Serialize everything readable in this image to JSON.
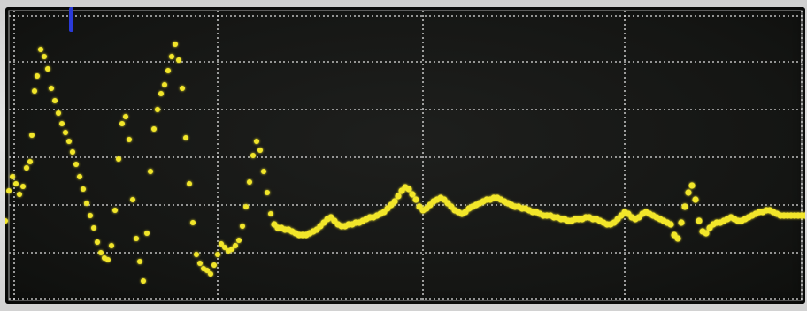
{
  "scope": {
    "background_color": "#161715",
    "grid_color": "#dcdcdc",
    "trace_color": "#f2e62a",
    "marker_color": "#2a3ad8",
    "grid": true,
    "trace": [
      [
        0,
        242
      ],
      [
        4,
        208
      ],
      [
        8,
        192
      ],
      [
        12,
        200
      ],
      [
        16,
        212
      ],
      [
        20,
        203
      ],
      [
        24,
        182
      ],
      [
        28,
        175
      ],
      [
        30,
        145
      ],
      [
        33,
        95
      ],
      [
        36,
        78
      ],
      [
        40,
        48
      ],
      [
        44,
        56
      ],
      [
        48,
        70
      ],
      [
        52,
        92
      ],
      [
        56,
        106
      ],
      [
        60,
        120
      ],
      [
        64,
        132
      ],
      [
        68,
        142
      ],
      [
        72,
        152
      ],
      [
        76,
        164
      ],
      [
        80,
        178
      ],
      [
        84,
        192
      ],
      [
        88,
        206
      ],
      [
        92,
        222
      ],
      [
        96,
        236
      ],
      [
        100,
        250
      ],
      [
        104,
        266
      ],
      [
        108,
        278
      ],
      [
        112,
        284
      ],
      [
        116,
        286
      ],
      [
        120,
        270
      ],
      [
        124,
        230
      ],
      [
        128,
        172
      ],
      [
        132,
        132
      ],
      [
        136,
        124
      ],
      [
        140,
        150
      ],
      [
        144,
        218
      ],
      [
        148,
        262
      ],
      [
        152,
        288
      ],
      [
        156,
        310
      ],
      [
        160,
        256
      ],
      [
        164,
        186
      ],
      [
        168,
        138
      ],
      [
        172,
        116
      ],
      [
        176,
        98
      ],
      [
        180,
        88
      ],
      [
        184,
        72
      ],
      [
        188,
        56
      ],
      [
        192,
        42
      ],
      [
        196,
        60
      ],
      [
        200,
        92
      ],
      [
        204,
        148
      ],
      [
        208,
        200
      ],
      [
        212,
        244
      ],
      [
        216,
        280
      ],
      [
        220,
        290
      ],
      [
        224,
        296
      ],
      [
        228,
        298
      ],
      [
        232,
        302
      ],
      [
        236,
        292
      ],
      [
        240,
        280
      ],
      [
        244,
        268
      ],
      [
        248,
        272
      ],
      [
        252,
        276
      ],
      [
        256,
        274
      ],
      [
        260,
        270
      ],
      [
        264,
        264
      ],
      [
        268,
        248
      ],
      [
        272,
        226
      ],
      [
        276,
        198
      ],
      [
        280,
        168
      ],
      [
        284,
        152
      ],
      [
        288,
        162
      ],
      [
        292,
        186
      ],
      [
        296,
        210
      ],
      [
        300,
        234
      ],
      [
        304,
        246
      ],
      [
        308,
        250
      ],
      [
        312,
        250
      ],
      [
        316,
        252
      ],
      [
        320,
        252
      ],
      [
        324,
        254
      ],
      [
        328,
        256
      ],
      [
        332,
        258
      ],
      [
        336,
        258
      ],
      [
        340,
        258
      ],
      [
        344,
        256
      ],
      [
        348,
        254
      ],
      [
        352,
        252
      ],
      [
        356,
        248
      ],
      [
        360,
        244
      ],
      [
        364,
        240
      ],
      [
        368,
        238
      ],
      [
        372,
        242
      ],
      [
        376,
        246
      ],
      [
        380,
        248
      ],
      [
        384,
        248
      ],
      [
        388,
        246
      ],
      [
        392,
        246
      ],
      [
        396,
        244
      ],
      [
        400,
        244
      ],
      [
        404,
        242
      ],
      [
        408,
        240
      ],
      [
        412,
        238
      ],
      [
        416,
        238
      ],
      [
        420,
        236
      ],
      [
        424,
        234
      ],
      [
        428,
        232
      ],
      [
        432,
        228
      ],
      [
        436,
        224
      ],
      [
        440,
        220
      ],
      [
        444,
        214
      ],
      [
        448,
        208
      ],
      [
        452,
        204
      ],
      [
        456,
        206
      ],
      [
        460,
        212
      ],
      [
        464,
        218
      ],
      [
        468,
        226
      ],
      [
        472,
        230
      ],
      [
        476,
        228
      ],
      [
        480,
        224
      ],
      [
        484,
        220
      ],
      [
        488,
        218
      ],
      [
        492,
        216
      ],
      [
        496,
        218
      ],
      [
        500,
        222
      ],
      [
        504,
        226
      ],
      [
        508,
        230
      ],
      [
        512,
        232
      ],
      [
        516,
        234
      ],
      [
        520,
        232
      ],
      [
        524,
        228
      ],
      [
        528,
        226
      ],
      [
        532,
        224
      ],
      [
        536,
        222
      ],
      [
        540,
        220
      ],
      [
        544,
        218
      ],
      [
        548,
        218
      ],
      [
        552,
        216
      ],
      [
        556,
        216
      ],
      [
        560,
        218
      ],
      [
        564,
        220
      ],
      [
        568,
        222
      ],
      [
        572,
        224
      ],
      [
        576,
        226
      ],
      [
        580,
        226
      ],
      [
        584,
        228
      ],
      [
        588,
        228
      ],
      [
        592,
        230
      ],
      [
        596,
        232
      ],
      [
        600,
        232
      ],
      [
        604,
        234
      ],
      [
        608,
        236
      ],
      [
        612,
        236
      ],
      [
        616,
        236
      ],
      [
        620,
        238
      ],
      [
        624,
        238
      ],
      [
        628,
        240
      ],
      [
        632,
        240
      ],
      [
        636,
        242
      ],
      [
        640,
        242
      ],
      [
        644,
        240
      ],
      [
        648,
        240
      ],
      [
        652,
        240
      ],
      [
        656,
        238
      ],
      [
        660,
        238
      ],
      [
        664,
        240
      ],
      [
        668,
        240
      ],
      [
        672,
        242
      ],
      [
        676,
        244
      ],
      [
        680,
        246
      ],
      [
        684,
        246
      ],
      [
        688,
        244
      ],
      [
        692,
        240
      ],
      [
        696,
        236
      ],
      [
        700,
        232
      ],
      [
        704,
        234
      ],
      [
        708,
        238
      ],
      [
        712,
        240
      ],
      [
        716,
        238
      ],
      [
        720,
        234
      ],
      [
        724,
        232
      ],
      [
        728,
        234
      ],
      [
        732,
        236
      ],
      [
        736,
        238
      ],
      [
        740,
        240
      ],
      [
        744,
        242
      ],
      [
        748,
        244
      ],
      [
        752,
        246
      ],
      [
        756,
        258
      ],
      [
        760,
        262
      ],
      [
        764,
        244
      ],
      [
        768,
        226
      ],
      [
        772,
        210
      ],
      [
        776,
        202
      ],
      [
        780,
        218
      ],
      [
        784,
        242
      ],
      [
        788,
        254
      ],
      [
        792,
        256
      ],
      [
        796,
        250
      ],
      [
        800,
        246
      ],
      [
        804,
        244
      ],
      [
        808,
        244
      ],
      [
        812,
        242
      ],
      [
        816,
        240
      ],
      [
        820,
        238
      ],
      [
        824,
        240
      ],
      [
        828,
        242
      ],
      [
        832,
        242
      ],
      [
        836,
        240
      ],
      [
        840,
        238
      ],
      [
        844,
        236
      ],
      [
        848,
        234
      ],
      [
        852,
        232
      ],
      [
        856,
        232
      ],
      [
        860,
        230
      ],
      [
        864,
        230
      ],
      [
        868,
        232
      ],
      [
        872,
        234
      ],
      [
        876,
        236
      ],
      [
        880,
        236
      ],
      [
        884,
        236
      ],
      [
        888,
        236
      ],
      [
        892,
        236
      ],
      [
        896,
        236
      ],
      [
        900,
        236
      ],
      [
        904,
        236
      ]
    ]
  }
}
